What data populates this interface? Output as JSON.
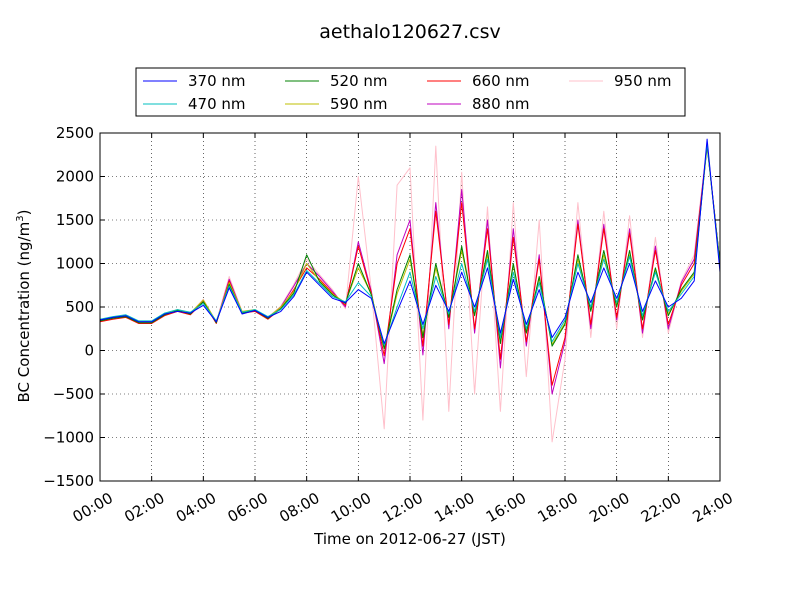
{
  "chart_data": {
    "type": "line",
    "title": "aethalo120627.csv",
    "xlabel": "Time on 2012-06-27 (JST)",
    "ylabel_main": "BC Concentration (ng/m",
    "ylabel_sup": "3",
    "ylabel_tail": ")",
    "xlim": [
      "00:00",
      "24:00"
    ],
    "ylim": [
      -1500,
      2500
    ],
    "grid": true,
    "legend_position": "top-center",
    "x_ticks": [
      "00:00",
      "02:00",
      "04:00",
      "06:00",
      "08:00",
      "10:00",
      "12:00",
      "14:00",
      "16:00",
      "18:00",
      "20:00",
      "22:00",
      "24:00"
    ],
    "y_ticks": [
      "−1500",
      "−1000",
      "−500",
      "0",
      "500",
      "1000",
      "1500",
      "2000",
      "2500"
    ],
    "x": [
      "00:00",
      "00:30",
      "01:00",
      "01:30",
      "02:00",
      "02:30",
      "03:00",
      "03:30",
      "04:00",
      "04:30",
      "05:00",
      "05:30",
      "06:00",
      "06:30",
      "07:00",
      "07:30",
      "08:00",
      "08:30",
      "09:00",
      "09:30",
      "10:00",
      "10:30",
      "11:00",
      "11:30",
      "12:00",
      "12:30",
      "13:00",
      "13:30",
      "14:00",
      "14:30",
      "15:00",
      "15:30",
      "16:00",
      "16:30",
      "17:00",
      "17:30",
      "18:00",
      "18:30",
      "19:00",
      "19:30",
      "20:00",
      "20:30",
      "21:00",
      "21:30",
      "22:00",
      "22:30",
      "23:00",
      "23:30",
      "24:00"
    ],
    "series": [
      {
        "name": "370 nm",
        "color": "#0000ff",
        "values": [
          350,
          380,
          400,
          330,
          330,
          420,
          450,
          430,
          520,
          330,
          720,
          420,
          460,
          380,
          450,
          620,
          900,
          750,
          600,
          550,
          700,
          600,
          80,
          450,
          800,
          300,
          750,
          450,
          900,
          500,
          950,
          200,
          820,
          300,
          700,
          150,
          380,
          900,
          550,
          950,
          600,
          1000,
          450,
          800,
          500,
          600,
          800,
          2430,
          900
        ]
      },
      {
        "name": "470 nm",
        "color": "#00bfbf",
        "values": [
          360,
          390,
          410,
          340,
          340,
          430,
          470,
          440,
          540,
          340,
          740,
          440,
          470,
          390,
          470,
          640,
          920,
          770,
          620,
          560,
          780,
          620,
          60,
          500,
          900,
          250,
          850,
          420,
          1000,
          450,
          1050,
          150,
          900,
          250,
          780,
          100,
          350,
          1000,
          500,
          1050,
          550,
          1080,
          400,
          900,
          450,
          650,
          850,
          2380,
          950
        ]
      },
      {
        "name": "520 nm",
        "color": "#008000",
        "values": [
          340,
          370,
          390,
          320,
          320,
          410,
          460,
          420,
          560,
          320,
          760,
          430,
          460,
          370,
          480,
          660,
          1100,
          790,
          640,
          540,
          1000,
          640,
          20,
          700,
          1100,
          150,
          1000,
          380,
          1200,
          400,
          1150,
          80,
          1000,
          200,
          850,
          50,
          300,
          1100,
          450,
          1150,
          500,
          1150,
          350,
          950,
          400,
          700,
          900,
          2360,
          1000
        ]
      },
      {
        "name": "590 nm",
        "color": "#bfbf00",
        "values": [
          350,
          380,
          400,
          330,
          330,
          420,
          470,
          430,
          580,
          330,
          780,
          450,
          470,
          380,
          500,
          680,
          1000,
          800,
          650,
          550,
          950,
          650,
          30,
          650,
          1050,
          180,
          950,
          400,
          1150,
          420,
          1100,
          100,
          980,
          220,
          830,
          70,
          320,
          1050,
          470,
          1100,
          520,
          1100,
          370,
          920,
          420,
          680,
          880,
          2350,
          980
        ]
      },
      {
        "name": "660 nm",
        "color": "#ff0000",
        "values": [
          330,
          360,
          380,
          310,
          310,
          400,
          450,
          410,
          560,
          310,
          800,
          430,
          450,
          360,
          480,
          700,
          950,
          820,
          660,
          520,
          1200,
          660,
          -60,
          1000,
          1400,
          50,
          1600,
          300,
          1700,
          250,
          1400,
          -100,
          1300,
          100,
          1050,
          -400,
          150,
          1450,
          300,
          1400,
          380,
          1350,
          250,
          1150,
          300,
          750,
          1000,
          2360,
          1000
        ]
      },
      {
        "name": "880 nm",
        "color": "#bf00bf",
        "values": [
          340,
          370,
          390,
          320,
          320,
          410,
          460,
          420,
          570,
          320,
          820,
          440,
          460,
          370,
          500,
          740,
          1000,
          850,
          680,
          500,
          1250,
          680,
          -150,
          1100,
          1500,
          -50,
          1700,
          250,
          1850,
          200,
          1500,
          -200,
          1400,
          50,
          1100,
          -500,
          100,
          1500,
          250,
          1450,
          350,
          1400,
          200,
          1200,
          250,
          780,
          1050,
          2350,
          1000
        ]
      },
      {
        "name": "950 nm",
        "color": "#ffc0cb",
        "values": [
          350,
          380,
          400,
          330,
          330,
          420,
          470,
          430,
          590,
          330,
          850,
          450,
          470,
          380,
          510,
          760,
          1050,
          870,
          700,
          480,
          2000,
          700,
          -900,
          1900,
          2100,
          -800,
          2350,
          -700,
          2050,
          -500,
          1650,
          -700,
          1700,
          -300,
          1500,
          -1050,
          -100,
          1700,
          150,
          1600,
          250,
          1550,
          150,
          1300,
          200,
          800,
          1100,
          2380,
          1000
        ]
      }
    ]
  }
}
